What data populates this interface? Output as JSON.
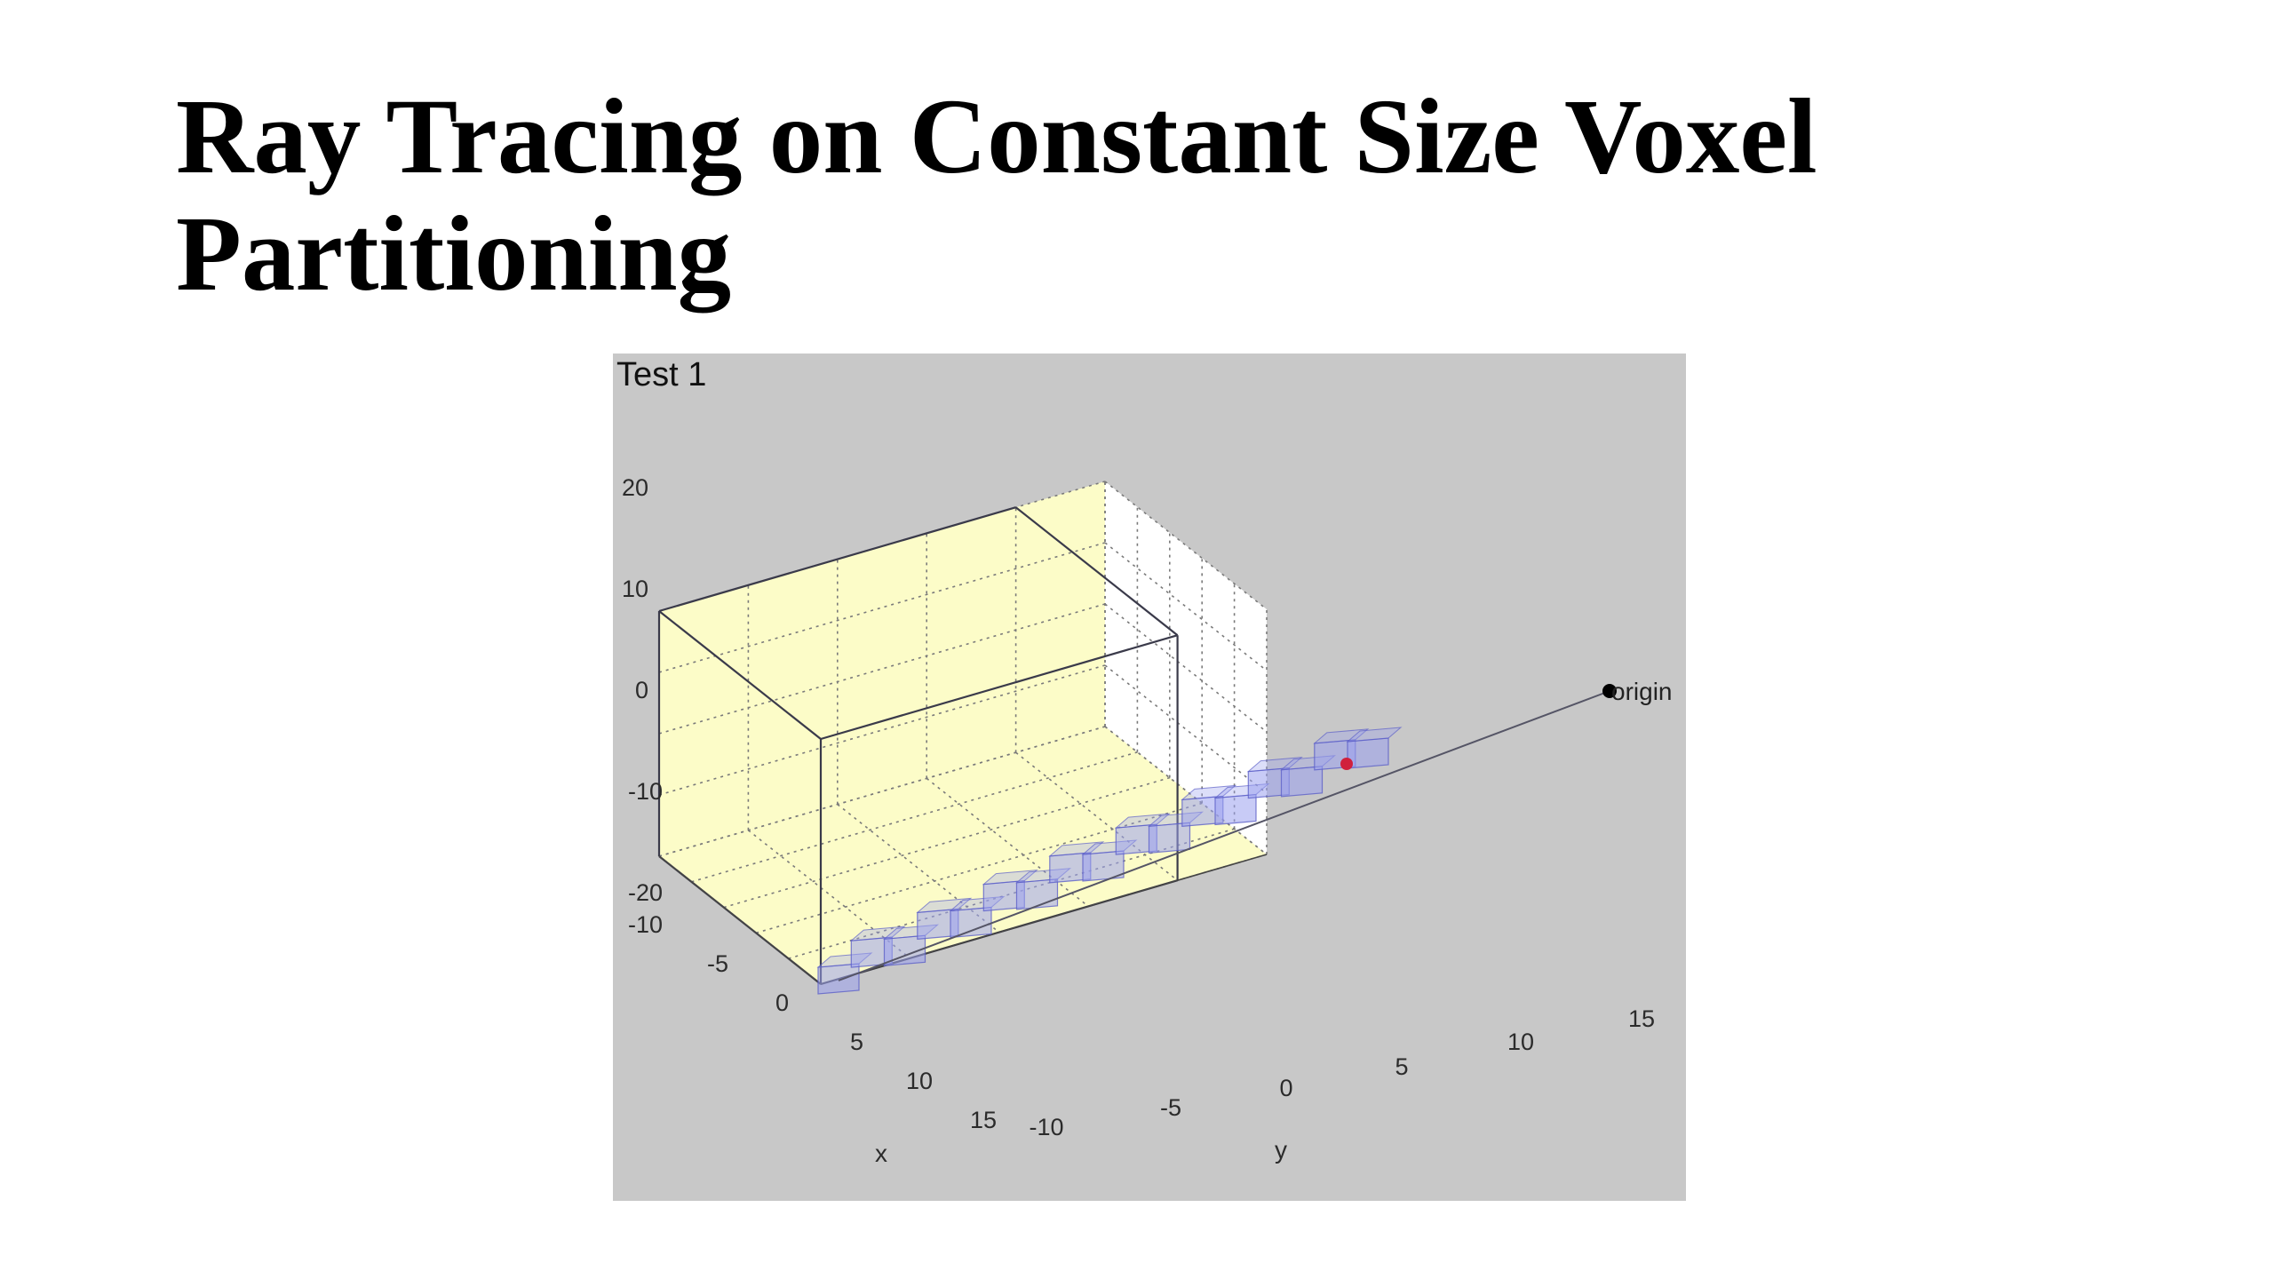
{
  "slide": {
    "title_line1": "Ray Tracing on Constant Size Voxel",
    "title_line2": "Partitioning"
  },
  "chart_data": {
    "type": "scatter",
    "title": "Test 1",
    "xlabel": "x",
    "ylabel": "y",
    "zlabel": "",
    "xlim": [
      -10,
      15
    ],
    "ylim": [
      -10,
      15
    ],
    "zlim": [
      -20,
      20
    ],
    "x_ticks": [
      "-10",
      "-5",
      "0",
      "5",
      "10",
      "15"
    ],
    "y_ticks": [
      "-10",
      "-5",
      "0",
      "5",
      "10",
      "15"
    ],
    "z_ticks": [
      "20",
      "10",
      "0",
      "-10",
      "-20"
    ],
    "grid": true,
    "colors": {
      "figure_background": "#c8c8c8",
      "pane_back": "#fcfcc8",
      "pane_floor": "#fcfcc8",
      "pane_side": "#ffffff",
      "voxel_fill": "#9aa0ee",
      "voxel_edge": "#5c60c8",
      "ray": "#555566",
      "hit_point": "#d0203c",
      "origin_point": "#000000"
    },
    "annotations": [
      {
        "label": "origin"
      }
    ]
  }
}
